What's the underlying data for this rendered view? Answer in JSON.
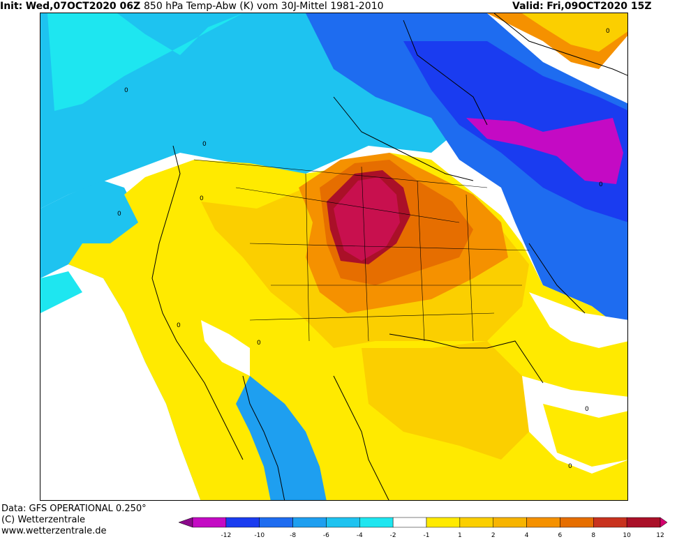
{
  "header": {
    "init_label": "Init:",
    "init_value": "Wed,07OCT2020 06Z",
    "title": "850 hPa Temp-Abw (K) vom 30J-Mittel 1981-2010",
    "valid_label": "Valid:",
    "valid_value": "Fri,09OCT2020 15Z"
  },
  "footer": {
    "data_source": "Data: GFS OPERATIONAL 0.250°",
    "copyright": "(C) Wetterzentrale",
    "website": "www.wetterzentrale.de"
  },
  "map": {
    "product": "850 hPa temperature anomaly",
    "contour_labels": [
      "0",
      "0",
      "0",
      "0",
      "0",
      "0",
      "0",
      "0",
      "0",
      "0"
    ]
  },
  "legend": {
    "bins": [
      {
        "color": "#8b0a8b"
      },
      {
        "color": "#c40ac4"
      },
      {
        "color": "#1a3cf0"
      },
      {
        "color": "#1e6cf0"
      },
      {
        "color": "#1e9ff0"
      },
      {
        "color": "#1ec3f0"
      },
      {
        "color": "#1ee6f0"
      },
      {
        "color": "#ffffff"
      },
      {
        "color": "#ffea00"
      },
      {
        "color": "#fbcf00"
      },
      {
        "color": "#f7b400"
      },
      {
        "color": "#f59100"
      },
      {
        "color": "#e66e00"
      },
      {
        "color": "#c8321e"
      },
      {
        "color": "#aa1028"
      },
      {
        "color": "#d4006e"
      }
    ],
    "ticks": [
      "-12",
      "-10",
      "-8",
      "-6",
      "-4",
      "-2",
      "-1",
      "1",
      "2",
      "4",
      "6",
      "8",
      "10",
      "12"
    ]
  }
}
